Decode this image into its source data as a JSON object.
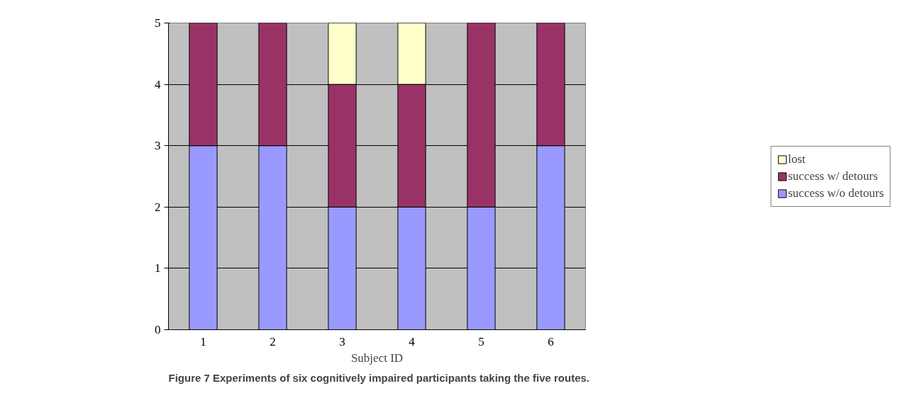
{
  "chart_data": {
    "type": "bar",
    "stacked": true,
    "xlabel": "Subject ID",
    "categories": [
      "1",
      "2",
      "3",
      "4",
      "5",
      "6"
    ],
    "series": [
      {
        "name": "success w/o detours",
        "color": "#9999ff",
        "values": [
          3,
          3,
          2,
          2,
          2,
          3
        ]
      },
      {
        "name": "success w/ detours",
        "color": "#993366",
        "values": [
          2,
          2,
          2,
          2,
          3,
          2
        ]
      },
      {
        "name": "lost",
        "color": "#ffffcc",
        "values": [
          null,
          null,
          1,
          1,
          null,
          null
        ]
      }
    ],
    "ylim": [
      0,
      5
    ],
    "yticks": [
      0,
      1,
      2,
      3,
      4,
      5
    ],
    "grid": "y",
    "legend": "right",
    "annotations": [
      "Figure 7 Experiments of six cognitively impaired participants taking the five routes."
    ]
  }
}
